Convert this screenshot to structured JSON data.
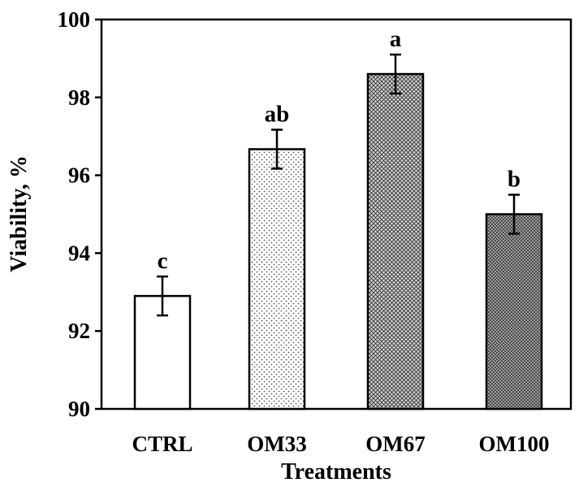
{
  "chart_data": {
    "type": "bar",
    "title": "",
    "xlabel": "Treatments",
    "ylabel": "Viability, %",
    "ylim": [
      90,
      100
    ],
    "yticks": [
      90,
      92,
      94,
      96,
      98,
      100
    ],
    "grid": false,
    "legend": "none",
    "categories": [
      "CTRL",
      "OM33",
      "OM67",
      "OM100"
    ],
    "values": [
      92.9,
      96.67,
      98.6,
      95.0
    ],
    "errors": [
      0.5,
      0.5,
      0.5,
      0.5
    ],
    "significance": [
      "c",
      "ab",
      "a",
      "b"
    ],
    "fill_patterns": [
      "none",
      "sparse-dots",
      "crosshatch-light",
      "crosshatch-dense"
    ]
  }
}
